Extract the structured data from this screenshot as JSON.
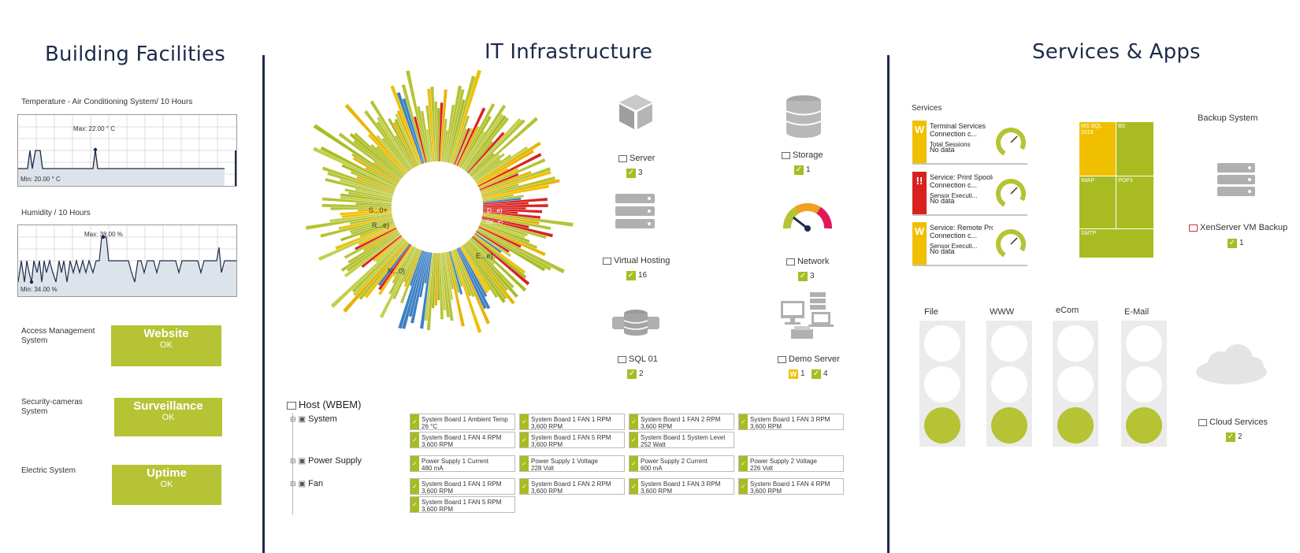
{
  "columns": {
    "building": "Building Facilities",
    "it": "IT Infrastructure",
    "services": "Services & Apps"
  },
  "building": {
    "temp_chart": {
      "title": "Temperature - Air Conditioning System/ 10 Hours",
      "max": "Max: 22.00 ° C",
      "min": "Min: 20.00 ° C"
    },
    "hum_chart": {
      "title": "Humidity / 10 Hours",
      "max": "Max: 38.00 %",
      "min": "Min: 34.00 %"
    },
    "tiles": [
      {
        "label": "Access Management System",
        "name": "Website",
        "status": "OK"
      },
      {
        "label": "Security-cameras System",
        "name": "Surveillance",
        "status": "OK"
      },
      {
        "label": "Electric System",
        "name": "Uptime",
        "status": "OK"
      }
    ]
  },
  "it": {
    "devices": [
      {
        "name": "Server",
        "count": "3"
      },
      {
        "name": "Storage",
        "count": "1"
      },
      {
        "name": "Virtual Hosting",
        "count": "16"
      },
      {
        "name": "Network",
        "count": "3"
      },
      {
        "name": "SQL 01",
        "count": "2"
      },
      {
        "name": "Demo Server",
        "warn": "1",
        "count": "4"
      }
    ],
    "sunburst_labels": [
      "D...e)",
      "De...e)",
      "R...e)",
      "S...0+",
      "N...0)",
      "E...e)"
    ],
    "host": {
      "title": "Host (WBEM)",
      "groups": [
        {
          "name": "System",
          "sensors": [
            {
              "name": "System Board 1 Ambient Temp",
              "value": "26 °C"
            },
            {
              "name": "System Board 1 FAN 1 RPM",
              "value": "3,600 RPM"
            },
            {
              "name": "System Board 1 FAN 2 RPM",
              "value": "3,600 RPM"
            },
            {
              "name": "System Board 1 FAN 3 RPM",
              "value": "3,600 RPM"
            },
            {
              "name": "System Board 1 FAN 4 RPM",
              "value": "3,600 RPM"
            },
            {
              "name": "System Board 1 FAN 5 RPM",
              "value": "3,600 RPM"
            },
            {
              "name": "System Board 1 System Level",
              "value": "252 Watt"
            }
          ]
        },
        {
          "name": "Power Supply",
          "sensors": [
            {
              "name": "Power Supply 1 Current",
              "value": "480 mA"
            },
            {
              "name": "Power Supply 1 Voltage",
              "value": "228 Volt"
            },
            {
              "name": "Power Supply 2 Current",
              "value": "600 mA"
            },
            {
              "name": "Power Supply 2 Voltage",
              "value": "226 Volt"
            }
          ]
        },
        {
          "name": "Fan",
          "sensors": [
            {
              "name": "System Board 1 FAN 1 RPM",
              "value": "3,600 RPM"
            },
            {
              "name": "System Board 1 FAN 2 RPM",
              "value": "3,600 RPM"
            },
            {
              "name": "System Board 1 FAN 3 RPM",
              "value": "3,600 RPM"
            },
            {
              "name": "System Board 1 FAN 4 RPM",
              "value": "3,600 RPM"
            },
            {
              "name": "System Board 1 FAN 5 RPM",
              "value": "3,600 RPM"
            }
          ]
        }
      ]
    }
  },
  "services": {
    "services_label": "Services",
    "items": [
      {
        "badge": "W",
        "color": "#f0c000",
        "title": "Terminal Services",
        "sub": "Connection c...",
        "metric": "Total Sessions",
        "value": "No data"
      },
      {
        "badge": "!!",
        "color": "#d9221f",
        "title": "Service: Print Spooler",
        "sub": "Connection c...",
        "metric": "Sensor Executi...",
        "value": "No data"
      },
      {
        "badge": "W",
        "color": "#f0c000",
        "title": "Service: Remote Procedu...",
        "sub": "Connection c...",
        "metric": "Sensor Executi...",
        "value": "No data"
      }
    ],
    "treemap": [
      "MS SQL 2019",
      "BS",
      "IMAP",
      "POP3",
      "SMTP"
    ],
    "backup": {
      "title": "Backup System",
      "name": "XenServer VM Backup",
      "count": "1"
    },
    "lights": [
      "File",
      "WWW",
      "eCom",
      "E-Mail"
    ],
    "cloud": {
      "name": "Cloud Services",
      "count": "2"
    }
  }
}
